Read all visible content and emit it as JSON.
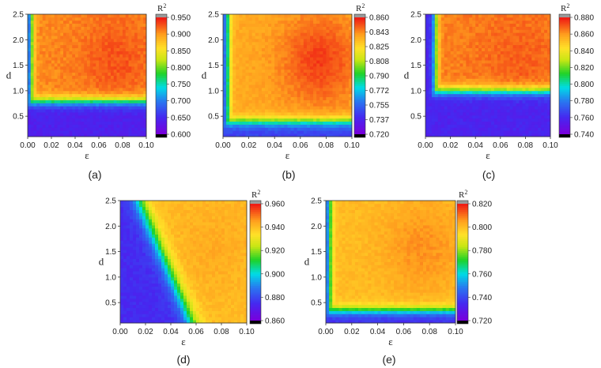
{
  "chart_data": [
    {
      "type": "heatmap",
      "panel_label": "(a)",
      "xlabel": "ε",
      "ylabel": "d",
      "x_ticks": [
        "0.00",
        "0.02",
        "0.04",
        "0.06",
        "0.08",
        "0.10"
      ],
      "y_ticks": [
        "0.5",
        "1.0",
        "1.5",
        "2.0",
        "2.5"
      ],
      "xlim": [
        0,
        0.1
      ],
      "ylim": [
        0.1,
        2.5
      ],
      "colorbar": {
        "title": "R",
        "superscript": "2",
        "ticks": [
          "0.600",
          "0.650",
          "0.700",
          "0.750",
          "0.800",
          "0.850",
          "0.900",
          "0.950"
        ],
        "range": [
          0.6,
          0.95
        ]
      },
      "model": {
        "low": 0.64,
        "high": 0.91,
        "boundary_d": 0.8,
        "boundary_eps": 0.003,
        "peak": 0.93,
        "notch": {
          "eps": 0.03,
          "d": 1.5,
          "depth": 0.0
        }
      }
    },
    {
      "type": "heatmap",
      "panel_label": "(b)",
      "xlabel": "ε",
      "ylabel": "d",
      "x_ticks": [
        "0.00",
        "0.02",
        "0.04",
        "0.06",
        "0.08",
        "0.10"
      ],
      "y_ticks": [
        "0.5",
        "1.0",
        "1.5",
        "2.0",
        "2.5"
      ],
      "xlim": [
        0,
        0.1
      ],
      "ylim": [
        0.1,
        2.5
      ],
      "colorbar": {
        "title": "R",
        "superscript": "2",
        "ticks": [
          "0.720",
          "0.737",
          "0.755",
          "0.772",
          "0.790",
          "0.808",
          "0.825",
          "0.843",
          "0.860"
        ],
        "range": [
          0.72,
          0.86
        ]
      },
      "model": {
        "low": 0.745,
        "high": 0.838,
        "boundary_d": 0.4,
        "boundary_eps": 0.004,
        "peak": 0.855
      }
    },
    {
      "type": "heatmap",
      "panel_label": "(c)",
      "xlabel": "ε",
      "ylabel": "d",
      "x_ticks": [
        "0.00",
        "0.02",
        "0.04",
        "0.06",
        "0.08",
        "0.10"
      ],
      "y_ticks": [
        "0.5",
        "1.0",
        "1.5",
        "2.0",
        "2.5"
      ],
      "xlim": [
        0,
        0.1
      ],
      "ylim": [
        0.1,
        2.5
      ],
      "colorbar": {
        "title": "R",
        "superscript": "2",
        "ticks": [
          "0.740",
          "0.760",
          "0.780",
          "0.800",
          "0.820",
          "0.840",
          "0.860",
          "0.880"
        ],
        "range": [
          0.74,
          0.885
        ]
      },
      "model": {
        "low": 0.758,
        "high": 0.87,
        "boundary_d": 1.0,
        "boundary_eps": 0.008,
        "peak": 0.875
      }
    },
    {
      "type": "heatmap",
      "panel_label": "(d)",
      "xlabel": "ε",
      "ylabel": "d",
      "x_ticks": [
        "0.00",
        "0.02",
        "0.04",
        "0.06",
        "0.08",
        "0.10"
      ],
      "y_ticks": [
        "0.5",
        "1.0",
        "1.5",
        "2.0",
        "2.5"
      ],
      "xlim": [
        0,
        0.1
      ],
      "ylim": [
        0.1,
        2.5
      ],
      "colorbar": {
        "title": "R",
        "superscript": "2",
        "ticks": [
          "0.860",
          "0.880",
          "0.900",
          "0.920",
          "0.940",
          "0.960"
        ],
        "range": [
          0.86,
          0.965
        ]
      },
      "model": {
        "low": 0.875,
        "high": 0.945,
        "boundary_d": 0.0,
        "boundary_eps": 0.0,
        "diag": true,
        "peak": 0.948
      }
    },
    {
      "type": "heatmap",
      "panel_label": "(e)",
      "xlabel": "ε",
      "ylabel": "d",
      "x_ticks": [
        "0.00",
        "0.02",
        "0.04",
        "0.06",
        "0.08",
        "0.10"
      ],
      "y_ticks": [
        "0.5",
        "1.0",
        "1.5",
        "2.0",
        "2.5"
      ],
      "xlim": [
        0,
        0.1
      ],
      "ylim": [
        0.1,
        2.5
      ],
      "colorbar": {
        "title": "R",
        "superscript": "2",
        "ticks": [
          "0.720",
          "0.740",
          "0.760",
          "0.780",
          "0.800",
          "0.820"
        ],
        "range": [
          0.72,
          0.825
        ]
      },
      "model": {
        "low": 0.735,
        "high": 0.805,
        "boundary_d": 0.35,
        "boundary_eps": 0.003,
        "peak": 0.812
      }
    }
  ]
}
